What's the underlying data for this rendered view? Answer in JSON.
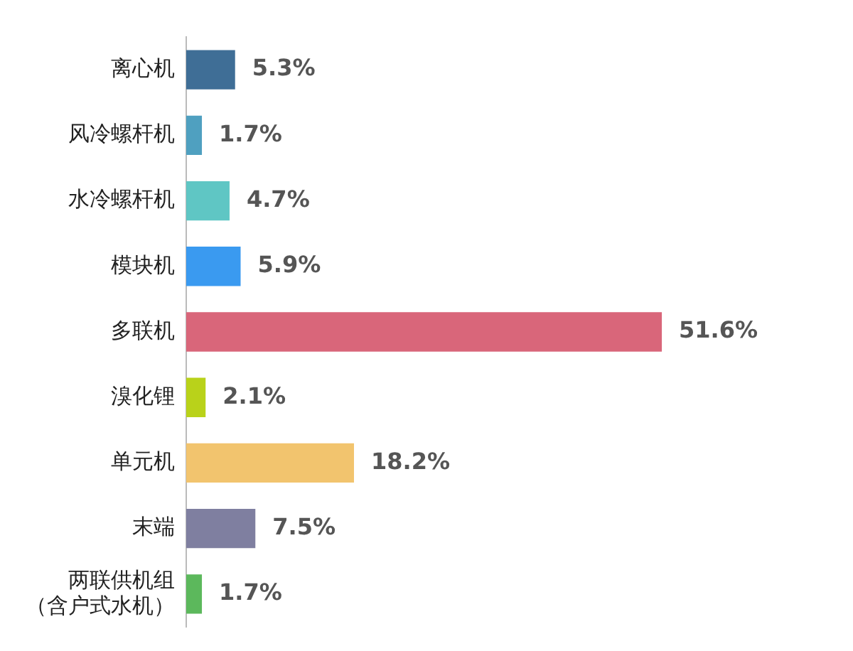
{
  "chart_data": {
    "type": "bar",
    "orientation": "horizontal",
    "categories": [
      "离心机",
      "风冷螺杆机",
      "水冷螺杆机",
      "模块机",
      "多联机",
      "溴化锂",
      "单元机",
      "末端",
      "两联供机组（含户式水机）"
    ],
    "values": [
      5.3,
      1.7,
      4.7,
      5.9,
      51.6,
      2.1,
      18.2,
      7.5,
      1.7
    ],
    "value_labels": [
      "5.3%",
      "1.7%",
      "4.7%",
      "5.9%",
      "51.6%",
      "2.1%",
      "18.2%",
      "7.5%",
      "1.7%"
    ],
    "colors": [
      "#3f6e96",
      "#4fa0c0",
      "#5fc6c4",
      "#3a9af0",
      "#d9667a",
      "#b9d21a",
      "#f2c46e",
      "#7f7fa0",
      "#5cb85c"
    ],
    "legend": false
  }
}
